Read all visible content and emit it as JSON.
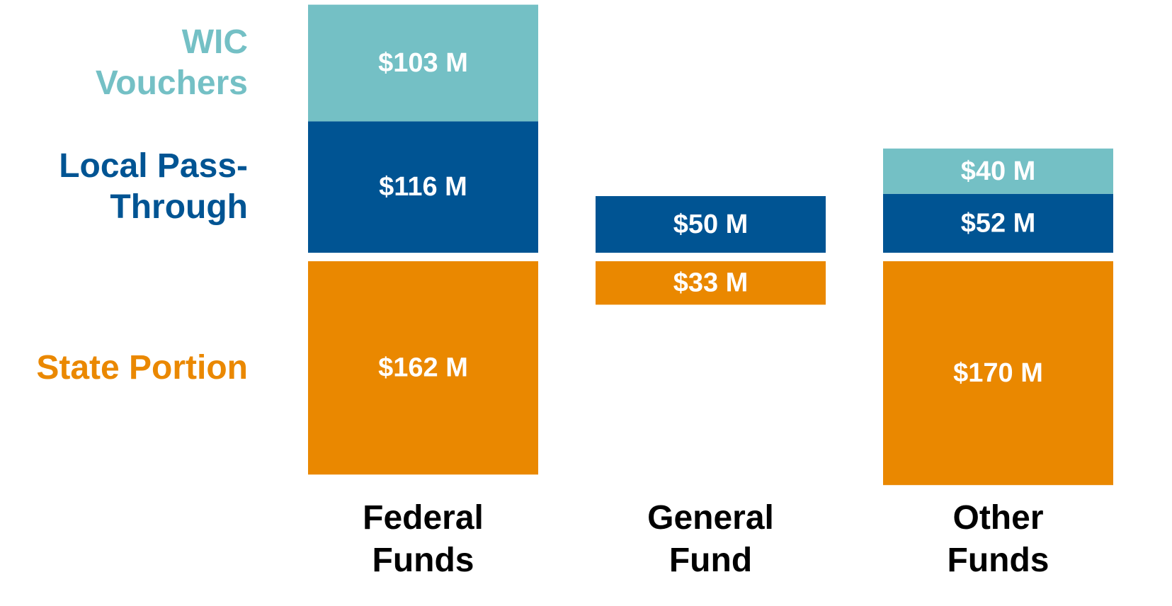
{
  "chart_data": {
    "type": "diverging_stacked_bar",
    "categories": [
      "Federal Funds",
      "General Fund",
      "Other Funds"
    ],
    "series": [
      {
        "name": "State Portion",
        "color": "#ea8800",
        "side": "below",
        "values": [
          162,
          33,
          170
        ],
        "value_labels": [
          "$162 M",
          "$33 M",
          "$170 M"
        ]
      },
      {
        "name": "Local Pass-Through",
        "color": "#005493",
        "side": "above",
        "values": [
          116,
          50,
          52
        ],
        "value_labels": [
          "$116 M",
          "$50 M",
          "$52 M"
        ]
      },
      {
        "name": "WIC Vouchers",
        "color": "#74c0c5",
        "side": "above",
        "values": [
          103,
          null,
          40
        ],
        "value_labels": [
          "$103 M",
          null,
          "$40 M"
        ]
      }
    ]
  }
}
